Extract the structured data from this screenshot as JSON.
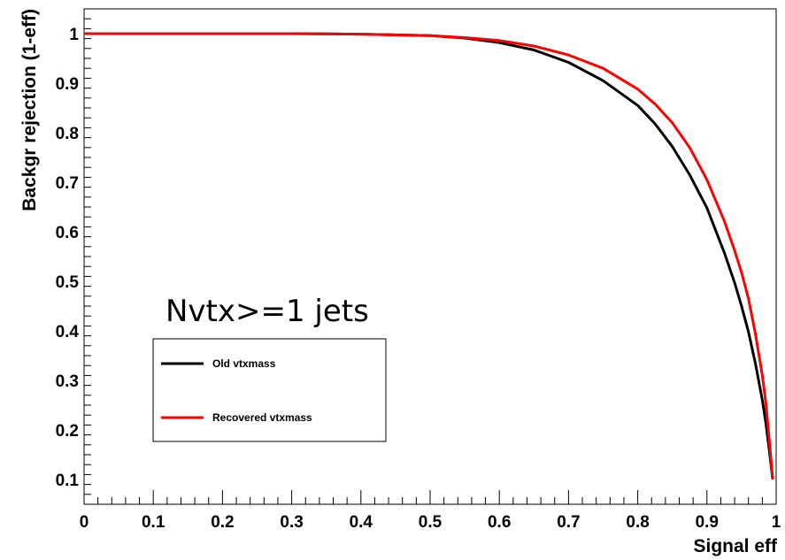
{
  "chart_data": {
    "type": "line",
    "title": "",
    "xlabel": "Signal eff",
    "ylabel": "Backgr rejection (1-eff)",
    "xlim": [
      0,
      1
    ],
    "ylim": [
      0.05,
      1.05
    ],
    "x_ticks": [
      "0",
      "0.1",
      "0.2",
      "0.3",
      "0.4",
      "0.5",
      "0.6",
      "0.7",
      "0.8",
      "0.9",
      "1"
    ],
    "y_ticks": [
      "0.1",
      "0.2",
      "0.3",
      "0.4",
      "0.5",
      "0.6",
      "0.7",
      "0.8",
      "0.9",
      "1"
    ],
    "annotation": "Nvtx>=1 jets",
    "legend_placement": "bottom-left",
    "grid": false,
    "series": [
      {
        "name": "Old vtxmass",
        "color": "#000000",
        "points": [
          [
            0,
            1.0
          ],
          [
            0.3,
            1.0
          ],
          [
            0.4,
            0.999
          ],
          [
            0.5,
            0.996
          ],
          [
            0.55,
            0.991
          ],
          [
            0.6,
            0.982
          ],
          [
            0.65,
            0.967
          ],
          [
            0.7,
            0.942
          ],
          [
            0.75,
            0.905
          ],
          [
            0.8,
            0.855
          ],
          [
            0.825,
            0.818
          ],
          [
            0.85,
            0.772
          ],
          [
            0.875,
            0.715
          ],
          [
            0.9,
            0.648
          ],
          [
            0.925,
            0.558
          ],
          [
            0.94,
            0.497
          ],
          [
            0.95,
            0.45
          ],
          [
            0.96,
            0.398
          ],
          [
            0.97,
            0.335
          ],
          [
            0.98,
            0.26
          ],
          [
            0.985,
            0.215
          ],
          [
            0.99,
            0.16
          ],
          [
            0.995,
            0.1
          ]
        ]
      },
      {
        "name": "Recovered vtxmass",
        "color": "#ff0000",
        "points": [
          [
            0,
            1.0
          ],
          [
            0.3,
            1.0
          ],
          [
            0.4,
            0.999
          ],
          [
            0.5,
            0.996
          ],
          [
            0.55,
            0.992
          ],
          [
            0.6,
            0.986
          ],
          [
            0.65,
            0.975
          ],
          [
            0.7,
            0.957
          ],
          [
            0.75,
            0.93
          ],
          [
            0.8,
            0.888
          ],
          [
            0.825,
            0.858
          ],
          [
            0.85,
            0.82
          ],
          [
            0.875,
            0.77
          ],
          [
            0.9,
            0.705
          ],
          [
            0.925,
            0.622
          ],
          [
            0.94,
            0.562
          ],
          [
            0.95,
            0.518
          ],
          [
            0.96,
            0.465
          ],
          [
            0.97,
            0.395
          ],
          [
            0.98,
            0.31
          ],
          [
            0.985,
            0.255
          ],
          [
            0.99,
            0.18
          ],
          [
            0.995,
            0.1
          ]
        ]
      }
    ]
  }
}
